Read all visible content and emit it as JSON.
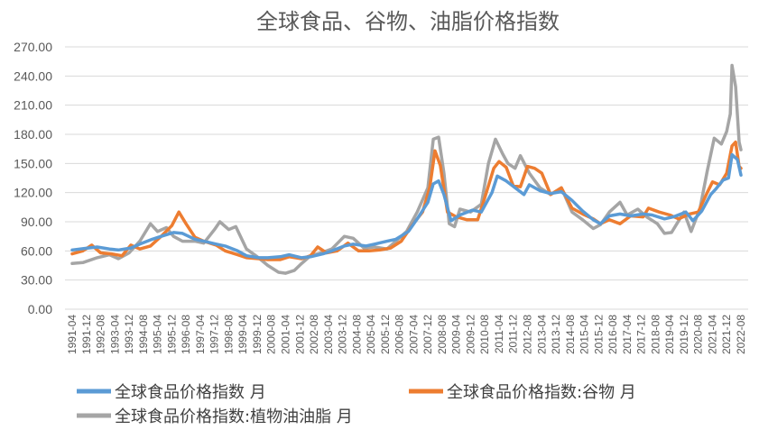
{
  "chart_data": {
    "type": "line",
    "title": "全球食品、谷物、油脂价格指数",
    "xlabel": "",
    "ylabel": "",
    "ylim": [
      0,
      270
    ],
    "y_ticks": [
      "0.00",
      "30.00",
      "60.00",
      "90.00",
      "120.00",
      "150.00",
      "180.00",
      "210.00",
      "240.00",
      "270.00"
    ],
    "x_ticks": [
      "1991-04",
      "1991-12",
      "1992-08",
      "1993-04",
      "1993-12",
      "1994-08",
      "1995-04",
      "1995-12",
      "1996-08",
      "1997-04",
      "1997-12",
      "1998-08",
      "1999-04",
      "1999-12",
      "2000-08",
      "2001-04",
      "2001-12",
      "2002-08",
      "2003-04",
      "2003-12",
      "2004-08",
      "2005-04",
      "2005-12",
      "2006-08",
      "2007-04",
      "2007-12",
      "2008-08",
      "2009-04",
      "2009-12",
      "2010-08",
      "2011-04",
      "2011-12",
      "2012-08",
      "2013-04",
      "2013-12",
      "2014-08",
      "2015-04",
      "2015-12",
      "2016-08",
      "2017-04",
      "2017-12",
      "2018-08",
      "2019-04",
      "2019-12",
      "2020-08",
      "2021-04",
      "2021-12",
      "2022-08"
    ],
    "x_range": [
      "1991-04",
      "2022-08"
    ],
    "grid": "horizontal",
    "legend_position": "bottom",
    "series": [
      {
        "name": "全球食品价格指数 月",
        "color": "#5b9bd5",
        "points": [
          [
            "1991-04",
            61
          ],
          [
            "1992-01",
            63
          ],
          [
            "1992-06",
            64
          ],
          [
            "1993-01",
            62
          ],
          [
            "1993-06",
            61
          ],
          [
            "1994-01",
            63
          ],
          [
            "1994-06",
            67
          ],
          [
            "1995-01",
            72
          ],
          [
            "1995-06",
            75
          ],
          [
            "1996-01",
            79
          ],
          [
            "1996-06",
            78
          ],
          [
            "1997-01",
            72
          ],
          [
            "1997-06",
            70
          ],
          [
            "1998-01",
            67
          ],
          [
            "1998-06",
            65
          ],
          [
            "1999-01",
            60
          ],
          [
            "1999-06",
            55
          ],
          [
            "2000-01",
            53
          ],
          [
            "2000-06",
            53
          ],
          [
            "2001-01",
            54
          ],
          [
            "2001-06",
            56
          ],
          [
            "2002-01",
            53
          ],
          [
            "2002-06",
            54
          ],
          [
            "2003-01",
            57
          ],
          [
            "2003-06",
            60
          ],
          [
            "2004-01",
            65
          ],
          [
            "2004-06",
            67
          ],
          [
            "2005-01",
            65
          ],
          [
            "2005-06",
            67
          ],
          [
            "2006-01",
            70
          ],
          [
            "2006-06",
            72
          ],
          [
            "2007-01",
            80
          ],
          [
            "2007-06",
            93
          ],
          [
            "2007-12",
            110
          ],
          [
            "2008-03",
            129
          ],
          [
            "2008-06",
            132
          ],
          [
            "2008-09",
            118
          ],
          [
            "2009-01",
            91
          ],
          [
            "2009-06",
            97
          ],
          [
            "2010-01",
            102
          ],
          [
            "2010-06",
            100
          ],
          [
            "2010-12",
            120
          ],
          [
            "2011-03",
            137
          ],
          [
            "2011-08",
            132
          ],
          [
            "2012-01",
            125
          ],
          [
            "2012-06",
            118
          ],
          [
            "2012-09",
            128
          ],
          [
            "2013-03",
            122
          ],
          [
            "2013-09",
            119
          ],
          [
            "2014-03",
            121
          ],
          [
            "2014-09",
            112
          ],
          [
            "2015-03",
            101
          ],
          [
            "2015-09",
            92
          ],
          [
            "2016-01",
            88
          ],
          [
            "2016-06",
            96
          ],
          [
            "2016-12",
            98
          ],
          [
            "2017-06",
            96
          ],
          [
            "2018-01",
            98
          ],
          [
            "2018-06",
            97
          ],
          [
            "2019-01",
            93
          ],
          [
            "2019-06",
            95
          ],
          [
            "2020-01",
            100
          ],
          [
            "2020-05",
            91
          ],
          [
            "2020-10",
            101
          ],
          [
            "2021-03",
            118
          ],
          [
            "2021-06",
            124
          ],
          [
            "2021-10",
            133
          ],
          [
            "2022-01",
            135
          ],
          [
            "2022-03",
            159
          ],
          [
            "2022-06",
            154
          ],
          [
            "2022-08",
            138
          ]
        ]
      },
      {
        "name": "全球食品价格指数:谷物 月",
        "color": "#ed7d31",
        "points": [
          [
            "1991-04",
            57
          ],
          [
            "1991-10",
            60
          ],
          [
            "1992-03",
            66
          ],
          [
            "1992-08",
            58
          ],
          [
            "1993-02",
            57
          ],
          [
            "1993-08",
            55
          ],
          [
            "1994-01",
            66
          ],
          [
            "1994-06",
            62
          ],
          [
            "1994-12",
            65
          ],
          [
            "1995-06",
            75
          ],
          [
            "1995-12",
            86
          ],
          [
            "1996-04",
            100
          ],
          [
            "1996-08",
            88
          ],
          [
            "1997-01",
            74
          ],
          [
            "1997-06",
            70
          ],
          [
            "1998-01",
            66
          ],
          [
            "1998-06",
            60
          ],
          [
            "1999-01",
            56
          ],
          [
            "1999-06",
            53
          ],
          [
            "2000-01",
            52
          ],
          [
            "2000-06",
            51
          ],
          [
            "2001-01",
            51
          ],
          [
            "2001-06",
            54
          ],
          [
            "2002-01",
            52
          ],
          [
            "2002-06",
            55
          ],
          [
            "2002-10",
            64
          ],
          [
            "2003-03",
            58
          ],
          [
            "2003-09",
            60
          ],
          [
            "2004-03",
            68
          ],
          [
            "2004-09",
            60
          ],
          [
            "2005-03",
            60
          ],
          [
            "2005-09",
            61
          ],
          [
            "2006-03",
            63
          ],
          [
            "2006-09",
            70
          ],
          [
            "2007-03",
            86
          ],
          [
            "2007-09",
            100
          ],
          [
            "2008-01",
            125
          ],
          [
            "2008-04",
            163
          ],
          [
            "2008-07",
            148
          ],
          [
            "2008-11",
            100
          ],
          [
            "2009-04",
            95
          ],
          [
            "2009-10",
            92
          ],
          [
            "2010-04",
            92
          ],
          [
            "2010-08",
            115
          ],
          [
            "2011-01",
            145
          ],
          [
            "2011-04",
            152
          ],
          [
            "2011-08",
            146
          ],
          [
            "2011-12",
            127
          ],
          [
            "2012-04",
            126
          ],
          [
            "2012-08",
            147
          ],
          [
            "2012-12",
            145
          ],
          [
            "2013-04",
            140
          ],
          [
            "2013-09",
            118
          ],
          [
            "2014-03",
            125
          ],
          [
            "2014-09",
            104
          ],
          [
            "2015-03",
            98
          ],
          [
            "2015-09",
            93
          ],
          [
            "2016-01",
            88
          ],
          [
            "2016-06",
            92
          ],
          [
            "2016-12",
            88
          ],
          [
            "2017-06",
            96
          ],
          [
            "2018-01",
            95
          ],
          [
            "2018-04",
            104
          ],
          [
            "2018-10",
            100
          ],
          [
            "2019-04",
            97
          ],
          [
            "2019-09",
            93
          ],
          [
            "2020-03",
            98
          ],
          [
            "2020-08",
            100
          ],
          [
            "2021-01",
            120
          ],
          [
            "2021-04",
            131
          ],
          [
            "2021-08",
            128
          ],
          [
            "2021-12",
            140
          ],
          [
            "2022-03",
            168
          ],
          [
            "2022-05",
            172
          ],
          [
            "2022-07",
            147
          ],
          [
            "2022-08",
            145
          ]
        ]
      },
      {
        "name": "全球食品价格指数:植物油油脂 月",
        "color": "#a5a5a5",
        "points": [
          [
            "1991-04",
            47
          ],
          [
            "1991-10",
            48
          ],
          [
            "1992-06",
            53
          ],
          [
            "1993-01",
            56
          ],
          [
            "1993-06",
            52
          ],
          [
            "1993-12",
            58
          ],
          [
            "1994-06",
            70
          ],
          [
            "1994-12",
            88
          ],
          [
            "1995-04",
            80
          ],
          [
            "1995-09",
            84
          ],
          [
            "1996-01",
            75
          ],
          [
            "1996-06",
            70
          ],
          [
            "1997-01",
            70
          ],
          [
            "1997-06",
            68
          ],
          [
            "1997-12",
            82
          ],
          [
            "1998-03",
            90
          ],
          [
            "1998-08",
            82
          ],
          [
            "1998-12",
            85
          ],
          [
            "1999-06",
            62
          ],
          [
            "1999-12",
            54
          ],
          [
            "2000-06",
            45
          ],
          [
            "2000-12",
            38
          ],
          [
            "2001-04",
            37
          ],
          [
            "2001-09",
            40
          ],
          [
            "2002-01",
            47
          ],
          [
            "2002-06",
            55
          ],
          [
            "2002-12",
            58
          ],
          [
            "2003-06",
            62
          ],
          [
            "2004-01",
            75
          ],
          [
            "2004-06",
            73
          ],
          [
            "2004-12",
            63
          ],
          [
            "2005-06",
            64
          ],
          [
            "2006-01",
            62
          ],
          [
            "2006-06",
            70
          ],
          [
            "2006-12",
            80
          ],
          [
            "2007-06",
            100
          ],
          [
            "2007-12",
            125
          ],
          [
            "2008-03",
            175
          ],
          [
            "2008-06",
            177
          ],
          [
            "2008-09",
            140
          ],
          [
            "2008-12",
            88
          ],
          [
            "2009-03",
            85
          ],
          [
            "2009-06",
            103
          ],
          [
            "2009-12",
            100
          ],
          [
            "2010-06",
            108
          ],
          [
            "2010-10",
            150
          ],
          [
            "2011-02",
            175
          ],
          [
            "2011-06",
            160
          ],
          [
            "2011-09",
            150
          ],
          [
            "2012-01",
            145
          ],
          [
            "2012-04",
            158
          ],
          [
            "2012-09",
            140
          ],
          [
            "2013-03",
            125
          ],
          [
            "2013-09",
            118
          ],
          [
            "2014-03",
            125
          ],
          [
            "2014-09",
            100
          ],
          [
            "2015-03",
            92
          ],
          [
            "2015-09",
            83
          ],
          [
            "2016-01",
            87
          ],
          [
            "2016-06",
            100
          ],
          [
            "2016-12",
            110
          ],
          [
            "2017-04",
            97
          ],
          [
            "2017-10",
            103
          ],
          [
            "2018-03",
            95
          ],
          [
            "2018-09",
            88
          ],
          [
            "2019-01",
            78
          ],
          [
            "2019-05",
            79
          ],
          [
            "2019-12",
            100
          ],
          [
            "2020-04",
            80
          ],
          [
            "2020-09",
            104
          ],
          [
            "2021-01",
            142
          ],
          [
            "2021-05",
            176
          ],
          [
            "2021-09",
            170
          ],
          [
            "2021-12",
            183
          ],
          [
            "2022-02",
            201
          ],
          [
            "2022-03",
            251
          ],
          [
            "2022-05",
            229
          ],
          [
            "2022-07",
            172
          ],
          [
            "2022-08",
            164
          ]
        ]
      }
    ]
  }
}
